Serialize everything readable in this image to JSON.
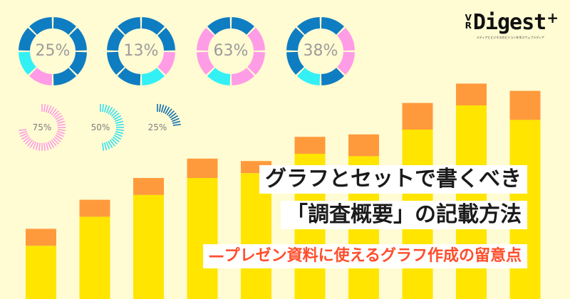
{
  "colors": {
    "background": "#fffbd3",
    "bar_yellow": "#ffe500",
    "bar_orange": "#ff9a3c",
    "donut_blue": "#0f7dc2",
    "donut_pink": "#ff9ce6",
    "donut_cyan": "#33f0f5",
    "gauge_pink": "#ff9ce6",
    "gauge_cyan": "#33e0f0",
    "gauge_blue": "#0f6fb0",
    "subtitle_red": "#ff4d2b"
  },
  "donuts": [
    {
      "label": "25%",
      "segments": [
        "blue",
        "blue",
        "blue",
        "blue",
        "pink",
        "cyan",
        "blue",
        "blue"
      ]
    },
    {
      "label": "13%",
      "segments": [
        "blue",
        "blue",
        "pink",
        "cyan",
        "blue",
        "blue",
        "blue",
        "blue"
      ]
    },
    {
      "label": "63%",
      "segments": [
        "blue",
        "pink",
        "pink",
        "pink",
        "cyan",
        "pink",
        "pink",
        "blue"
      ]
    },
    {
      "label": "38%",
      "segments": [
        "blue",
        "pink",
        "pink",
        "blue",
        "cyan",
        "blue",
        "blue",
        "blue"
      ]
    }
  ],
  "gauges": [
    {
      "label": "75%",
      "fraction": 0.75,
      "color": "gauge_pink"
    },
    {
      "label": "50%",
      "fraction": 0.5,
      "color": "gauge_cyan"
    },
    {
      "label": "25%",
      "fraction": 0.25,
      "color": "gauge_blue"
    }
  ],
  "bars": [
    {
      "yellow": 2.2,
      "orange": 0.7
    },
    {
      "yellow": 3.4,
      "orange": 0.7
    },
    {
      "yellow": 4.3,
      "orange": 0.7
    },
    {
      "yellow": 5.0,
      "orange": 0.8
    },
    {
      "yellow": 5.2,
      "orange": 0.5
    },
    {
      "yellow": 6.0,
      "orange": 0.7
    },
    {
      "yellow": 5.9,
      "orange": 0.9
    },
    {
      "yellow": 7.0,
      "orange": 1.1
    },
    {
      "yellow": 8.0,
      "orange": 0.9
    },
    {
      "yellow": 7.4,
      "orange": 1.2
    }
  ],
  "logo": {
    "vr_top": "V",
    "vr_bottom": "R",
    "word": "Digest",
    "plus": "+",
    "tagline": "メディアとビジネスのビジョンを学ぶウェブメディア"
  },
  "title": {
    "line1": "グラフとセットで書くべき",
    "line2": "「調査概要」の記載方法",
    "subtitle": "—プレゼン資料に使えるグラフ作成の留意点"
  }
}
